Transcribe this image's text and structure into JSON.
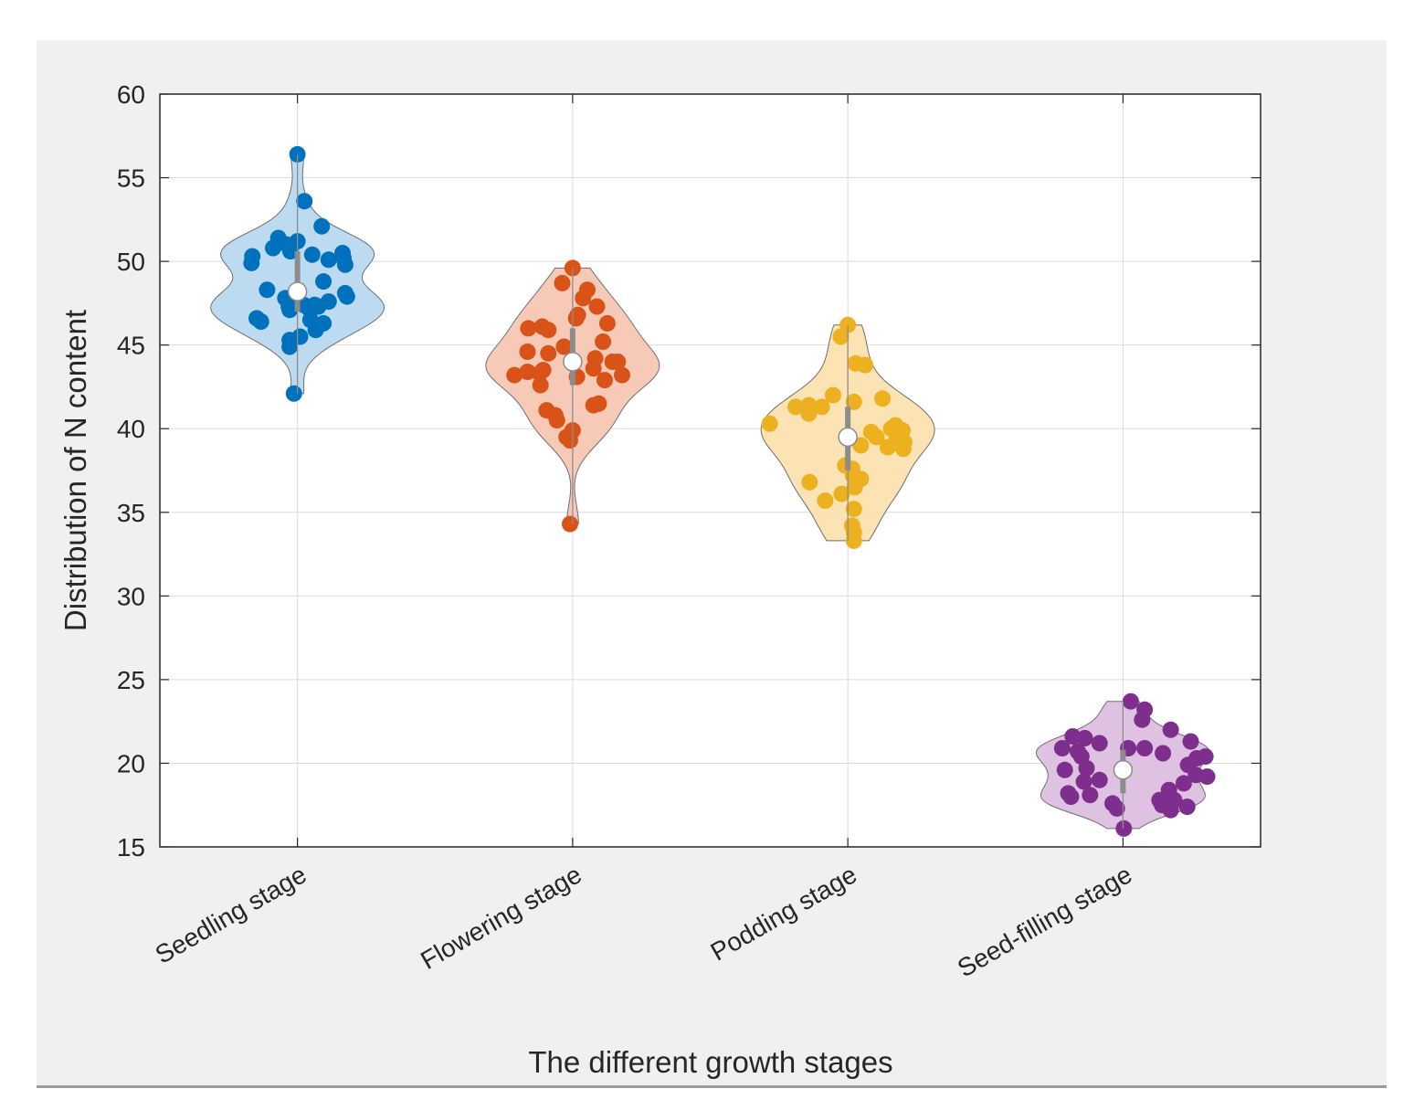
{
  "chart_data": {
    "type": "violin",
    "title": "",
    "xlabel": "The different growth stages",
    "ylabel": "Distribution of N content",
    "ylim": [
      15,
      60
    ],
    "yticks": [
      "15",
      "20",
      "25",
      "30",
      "35",
      "40",
      "45",
      "50",
      "55",
      "60"
    ],
    "grid": true,
    "categories": [
      "Seedling stage",
      "Flowering stage",
      "Podding stage",
      "Seed-filling stage"
    ],
    "series": [
      {
        "name": "Seedling stage",
        "color": "#0072BD",
        "fill": "#b9d9ef",
        "median": 48.2,
        "q1": 47.0,
        "q3": 50.6,
        "min": 42.1,
        "max": 56.4,
        "points": [
          56.4,
          53.6,
          52.1,
          51.2,
          51.4,
          51.0,
          50.8,
          50.4,
          50.9,
          50.6,
          50.5,
          50.3,
          50.2,
          50.1,
          49.8,
          49.9,
          48.8,
          48.3,
          48.1,
          47.8,
          47.9,
          47.6,
          47.4,
          47.4,
          47.3,
          47.3,
          47.2,
          47.1,
          46.6,
          46.4,
          46.5,
          46.3,
          45.9,
          45.5,
          45.3,
          44.9,
          42.1
        ],
        "offsets": [
          0,
          0.08,
          0.28,
          0,
          -0.22,
          -0.12,
          -0.28,
          0.17,
          -0.08,
          -0.08,
          0.52,
          -0.52,
          0.53,
          0.36,
          0.55,
          -0.53,
          0.3,
          -0.35,
          0.55,
          -0.14,
          0.57,
          0.36,
          0.07,
          0.2,
          0.24,
          -0.1,
          0.13,
          -0.09,
          -0.47,
          -0.42,
          0.15,
          0.3,
          0.21,
          0.03,
          -0.09,
          -0.09,
          -0.04
        ]
      },
      {
        "name": "Flowering stage",
        "color": "#D95319",
        "fill": "#f7c7b4",
        "median": 44.0,
        "q1": 42.6,
        "q3": 46.0,
        "min": 34.3,
        "max": 49.6,
        "points": [
          49.6,
          48.7,
          48.3,
          47.8,
          47.3,
          46.8,
          46.6,
          46.3,
          46.1,
          46.0,
          45.9,
          45.2,
          44.9,
          44.6,
          44.5,
          44.2,
          44.0,
          44.0,
          43.6,
          43.5,
          43.4,
          43.3,
          43.2,
          43.2,
          43.1,
          42.9,
          42.6,
          41.5,
          41.4,
          41.1,
          40.8,
          40.5,
          39.9,
          39.5,
          39.3,
          34.3
        ],
        "offsets": [
          0,
          -0.12,
          0.17,
          0.12,
          0.28,
          0.06,
          0.04,
          0.4,
          -0.35,
          -0.51,
          -0.28,
          0.35,
          -0.1,
          -0.52,
          -0.28,
          0.26,
          0.46,
          0.52,
          0.24,
          -0.34,
          -0.52,
          -0.38,
          0.57,
          -0.67,
          0.05,
          0.37,
          -0.37,
          0.3,
          0.24,
          -0.3,
          -0.2,
          -0.18,
          0.0,
          -0.07,
          -0.03,
          -0.03
        ]
      },
      {
        "name": "Podding stage",
        "color": "#EDB120",
        "fill": "#fbe2b0",
        "median": 39.5,
        "q1": 37.5,
        "q3": 41.3,
        "min": 33.3,
        "max": 46.2,
        "points": [
          46.2,
          45.5,
          43.9,
          43.8,
          42.0,
          41.8,
          41.6,
          41.4,
          41.3,
          41.3,
          40.9,
          40.3,
          40.2,
          40.0,
          39.9,
          39.8,
          39.5,
          39.3,
          39.2,
          39.0,
          38.9,
          38.8,
          37.8,
          37.6,
          37.2,
          37.0,
          36.8,
          36.5,
          36.1,
          35.7,
          35.2,
          34.2,
          33.8,
          33.3
        ],
        "offsets": [
          0,
          -0.08,
          0.09,
          0.2,
          -0.17,
          0.4,
          0.07,
          -0.45,
          -0.3,
          -0.6,
          -0.45,
          -0.9,
          0.55,
          0.5,
          0.63,
          0.27,
          0.33,
          0.56,
          0.65,
          0.15,
          0.46,
          0.64,
          -0.03,
          0.05,
          0.06,
          0.15,
          -0.44,
          0.08,
          -0.07,
          -0.26,
          0.07,
          0.05,
          0.07,
          0.07
        ]
      },
      {
        "name": "Seed-filling stage",
        "color": "#7E2F8E",
        "fill": "#ddbfdf",
        "median": 19.6,
        "q1": 18.2,
        "q3": 20.8,
        "min": 16.1,
        "max": 23.7,
        "points": [
          23.7,
          23.2,
          22.6,
          22.0,
          21.6,
          21.5,
          21.3,
          21.2,
          20.9,
          20.9,
          20.9,
          20.7,
          20.6,
          20.4,
          20.4,
          20.3,
          19.9,
          19.7,
          19.6,
          19.3,
          19.2,
          19.0,
          18.9,
          18.8,
          18.4,
          18.2,
          18.1,
          18.0,
          17.8,
          17.8,
          17.6,
          17.5,
          17.4,
          17.3,
          17.2,
          16.1
        ],
        "offsets": [
          0.09,
          0.25,
          0.22,
          0.55,
          -0.58,
          -0.44,
          0.78,
          -0.27,
          -0.7,
          0.06,
          0.25,
          -0.52,
          0.46,
          -0.48,
          0.95,
          0.85,
          0.75,
          -0.42,
          -0.67,
          0.84,
          0.97,
          -0.27,
          -0.45,
          0.7,
          0.53,
          -0.63,
          -0.38,
          -0.6,
          0.59,
          0.42,
          -0.12,
          0.45,
          0.74,
          -0.07,
          0.55,
          0.01
        ]
      }
    ]
  }
}
